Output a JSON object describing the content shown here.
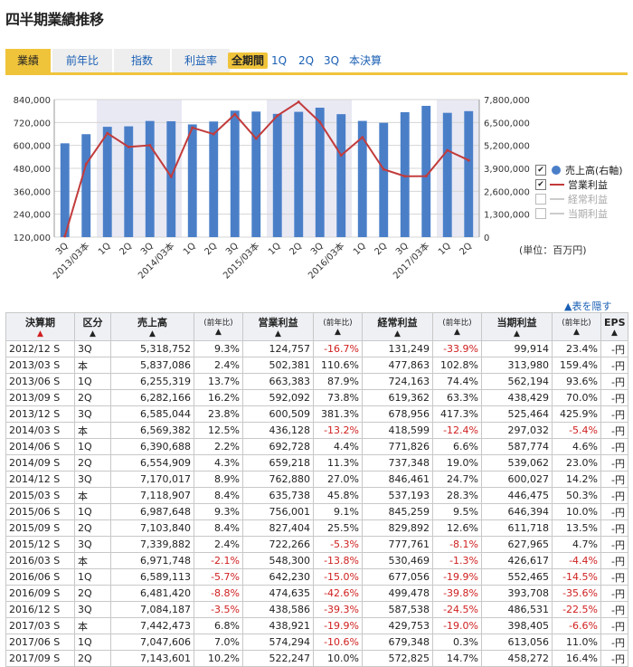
{
  "page": {
    "title": "四半期業績推移"
  },
  "tabs": [
    {
      "label": "業績",
      "active": true
    },
    {
      "label": "前年比",
      "active": false
    },
    {
      "label": "指数",
      "active": false
    },
    {
      "label": "利益率",
      "active": false
    }
  ],
  "periods": [
    {
      "label": "全期間",
      "active": true
    },
    {
      "label": "1Q",
      "active": false
    },
    {
      "label": "2Q",
      "active": false
    },
    {
      "label": "3Q",
      "active": false
    },
    {
      "label": "本決算",
      "active": false
    }
  ],
  "legend": [
    {
      "label": "売上高(右軸)",
      "checked": true,
      "marker": "dot"
    },
    {
      "label": "営業利益",
      "checked": true,
      "marker": "line"
    },
    {
      "label": "経常利益",
      "checked": false,
      "marker": "line"
    },
    {
      "label": "当期利益",
      "checked": false,
      "marker": "line"
    }
  ],
  "unit_label": "(単位：百万円)",
  "hide_table_label": "▲表を隠す",
  "colors": {
    "bar": "#4a7fc8",
    "line": "#c23b3b",
    "shade": "#e9e9f4",
    "tab_active": "#f0c43a"
  },
  "chart_data": {
    "type": "bar+line",
    "categories": [
      "3Q",
      "2013/03本",
      "1Q",
      "2Q",
      "3Q",
      "2014/03本",
      "1Q",
      "2Q",
      "3Q",
      "2015/03本",
      "1Q",
      "2Q",
      "3Q",
      "2016/03本",
      "1Q",
      "2Q",
      "3Q",
      "2017/03本",
      "1Q",
      "2Q"
    ],
    "left_axis": {
      "ylim": [
        120000,
        840000
      ],
      "ticks": [
        "840,000",
        "720,000",
        "600,000",
        "480,000",
        "360,000",
        "240,000",
        "120,000"
      ]
    },
    "right_axis": {
      "ylim": [
        0,
        7800000
      ],
      "ticks": [
        "7,800,000",
        "6,500,000",
        "5,200,000",
        "3,900,000",
        "2,600,000",
        "1,300,000",
        "0"
      ]
    },
    "series": [
      {
        "name": "売上高",
        "type": "bar",
        "axis": "right",
        "values": [
          5318752,
          5837086,
          6255319,
          6282166,
          6585044,
          6569382,
          6390688,
          6554909,
          7170017,
          7118907,
          6987648,
          7103840,
          7339882,
          6971748,
          6589113,
          6481420,
          7084187,
          7442473,
          7047606,
          7143601
        ]
      },
      {
        "name": "営業利益",
        "type": "line",
        "axis": "left",
        "values": [
          124757,
          502381,
          663383,
          592092,
          600509,
          436128,
          692728,
          659218,
          762880,
          635738,
          756001,
          827404,
          722266,
          548300,
          642230,
          474635,
          438586,
          438921,
          574294,
          522247
        ]
      }
    ],
    "shaded_bands": [
      [
        2,
        5
      ],
      [
        10,
        13
      ],
      [
        18,
        19
      ]
    ]
  },
  "table": {
    "headers": [
      {
        "label": "決算期",
        "arrow": "▲",
        "arrow_red": true,
        "cls": "main"
      },
      {
        "label": "区分",
        "arrow": "▲",
        "cls": "main"
      },
      {
        "label": "売上高",
        "arrow": "▲",
        "cls": "main"
      },
      {
        "label": "(前年比)",
        "arrow": "▲",
        "cls": "sub"
      },
      {
        "label": "営業利益",
        "arrow": "▲",
        "cls": "main"
      },
      {
        "label": "(前年比)",
        "arrow": "▲",
        "cls": "sub"
      },
      {
        "label": "経常利益",
        "arrow": "▲",
        "cls": "main"
      },
      {
        "label": "(前年比)",
        "arrow": "▲",
        "cls": "sub"
      },
      {
        "label": "当期利益",
        "arrow": "▲",
        "cls": "main"
      },
      {
        "label": "(前年比)",
        "arrow": "▲",
        "cls": "sub"
      },
      {
        "label": "EPS",
        "arrow": "▲",
        "cls": "main"
      }
    ],
    "rows": [
      [
        "2012/12 S",
        "3Q",
        "5,318,752",
        "9.3%",
        "124,757",
        "-16.7%",
        "131,249",
        "-33.9%",
        "99,914",
        "23.4%",
        "-円"
      ],
      [
        "2013/03 S",
        "本",
        "5,837,086",
        "2.4%",
        "502,381",
        "110.6%",
        "477,863",
        "102.8%",
        "313,980",
        "159.4%",
        "-円"
      ],
      [
        "2013/06 S",
        "1Q",
        "6,255,319",
        "13.7%",
        "663,383",
        "87.9%",
        "724,163",
        "74.4%",
        "562,194",
        "93.6%",
        "-円"
      ],
      [
        "2013/09 S",
        "2Q",
        "6,282,166",
        "16.2%",
        "592,092",
        "73.8%",
        "619,362",
        "63.3%",
        "438,429",
        "70.0%",
        "-円"
      ],
      [
        "2013/12 S",
        "3Q",
        "6,585,044",
        "23.8%",
        "600,509",
        "381.3%",
        "678,956",
        "417.3%",
        "525,464",
        "425.9%",
        "-円"
      ],
      [
        "2014/03 S",
        "本",
        "6,569,382",
        "12.5%",
        "436,128",
        "-13.2%",
        "418,599",
        "-12.4%",
        "297,032",
        "-5.4%",
        "-円"
      ],
      [
        "2014/06 S",
        "1Q",
        "6,390,688",
        "2.2%",
        "692,728",
        "4.4%",
        "771,826",
        "6.6%",
        "587,774",
        "4.6%",
        "-円"
      ],
      [
        "2014/09 S",
        "2Q",
        "6,554,909",
        "4.3%",
        "659,218",
        "11.3%",
        "737,348",
        "19.0%",
        "539,062",
        "23.0%",
        "-円"
      ],
      [
        "2014/12 S",
        "3Q",
        "7,170,017",
        "8.9%",
        "762,880",
        "27.0%",
        "846,461",
        "24.7%",
        "600,027",
        "14.2%",
        "-円"
      ],
      [
        "2015/03 S",
        "本",
        "7,118,907",
        "8.4%",
        "635,738",
        "45.8%",
        "537,193",
        "28.3%",
        "446,475",
        "50.3%",
        "-円"
      ],
      [
        "2015/06 S",
        "1Q",
        "6,987,648",
        "9.3%",
        "756,001",
        "9.1%",
        "845,259",
        "9.5%",
        "646,394",
        "10.0%",
        "-円"
      ],
      [
        "2015/09 S",
        "2Q",
        "7,103,840",
        "8.4%",
        "827,404",
        "25.5%",
        "829,892",
        "12.6%",
        "611,718",
        "13.5%",
        "-円"
      ],
      [
        "2015/12 S",
        "3Q",
        "7,339,882",
        "2.4%",
        "722,266",
        "-5.3%",
        "777,761",
        "-8.1%",
        "627,965",
        "4.7%",
        "-円"
      ],
      [
        "2016/03 S",
        "本",
        "6,971,748",
        "-2.1%",
        "548,300",
        "-13.8%",
        "530,469",
        "-1.3%",
        "426,617",
        "-4.4%",
        "-円"
      ],
      [
        "2016/06 S",
        "1Q",
        "6,589,113",
        "-5.7%",
        "642,230",
        "-15.0%",
        "677,056",
        "-19.9%",
        "552,465",
        "-14.5%",
        "-円"
      ],
      [
        "2016/09 S",
        "2Q",
        "6,481,420",
        "-8.8%",
        "474,635",
        "-42.6%",
        "499,478",
        "-39.8%",
        "393,708",
        "-35.6%",
        "-円"
      ],
      [
        "2016/12 S",
        "3Q",
        "7,084,187",
        "-3.5%",
        "438,586",
        "-39.3%",
        "587,538",
        "-24.5%",
        "486,531",
        "-22.5%",
        "-円"
      ],
      [
        "2017/03 S",
        "本",
        "7,442,473",
        "6.8%",
        "438,921",
        "-19.9%",
        "429,753",
        "-19.0%",
        "398,405",
        "-6.6%",
        "-円"
      ],
      [
        "2017/06 S",
        "1Q",
        "7,047,606",
        "7.0%",
        "574,294",
        "-10.6%",
        "679,348",
        "0.3%",
        "613,056",
        "11.0%",
        "-円"
      ],
      [
        "2017/09 S",
        "2Q",
        "7,143,601",
        "10.2%",
        "522,247",
        "10.0%",
        "572,825",
        "14.7%",
        "458,272",
        "16.4%",
        "-円"
      ]
    ]
  }
}
